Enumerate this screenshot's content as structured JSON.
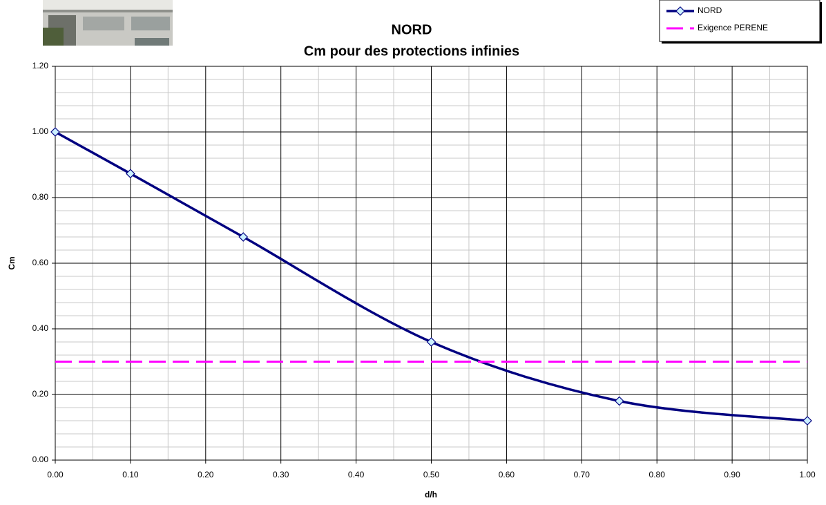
{
  "chart_data": {
    "type": "line",
    "title": "NORD",
    "subtitle": "Cm pour des protections infinies",
    "x_label": "d/h",
    "y_label": "Cm",
    "series": [
      {
        "name": "NORD",
        "color": "#000080",
        "marker": "diamond",
        "smooth": true,
        "x": [
          0,
          0.1,
          0.25,
          0.5,
          0.75,
          1.0
        ],
        "values": [
          1.0,
          0.873,
          0.68,
          0.36,
          0.18,
          0.12
        ]
      },
      {
        "name": "Exigence PERENE",
        "color": "#ff00ff",
        "dashed": true,
        "smooth": false,
        "x": [
          0,
          1.0
        ],
        "values": [
          0.3,
          0.3
        ]
      }
    ],
    "xlim": [
      0,
      1.0
    ],
    "ylim": [
      0,
      1.2
    ],
    "xticks": [
      {
        "value": 0,
        "label": "0.00"
      },
      {
        "value": 0.1,
        "label": "0.10"
      },
      {
        "value": 0.2,
        "label": "0.20"
      },
      {
        "value": 0.3,
        "label": "0.30"
      },
      {
        "value": 0.4,
        "label": "0.40"
      },
      {
        "value": 0.5,
        "label": "0.50"
      },
      {
        "value": 0.6,
        "label": "0.60"
      },
      {
        "value": 0.7,
        "label": "0.70"
      },
      {
        "value": 0.8,
        "label": "0.80"
      },
      {
        "value": 0.9,
        "label": "0.90"
      },
      {
        "value": 1.0,
        "label": "1.00"
      }
    ],
    "yticks": [
      {
        "value": 0,
        "label": "0.00"
      },
      {
        "value": 0.2,
        "label": "0.20"
      },
      {
        "value": 0.4,
        "label": "0.40"
      },
      {
        "value": 0.6,
        "label": "0.60"
      },
      {
        "value": 0.8,
        "label": "0.80"
      },
      {
        "value": 1.0,
        "label": "1.00"
      },
      {
        "value": 1.2,
        "label": "1.20"
      }
    ],
    "grid": true,
    "minor_grid": true,
    "legend": "upper right"
  }
}
